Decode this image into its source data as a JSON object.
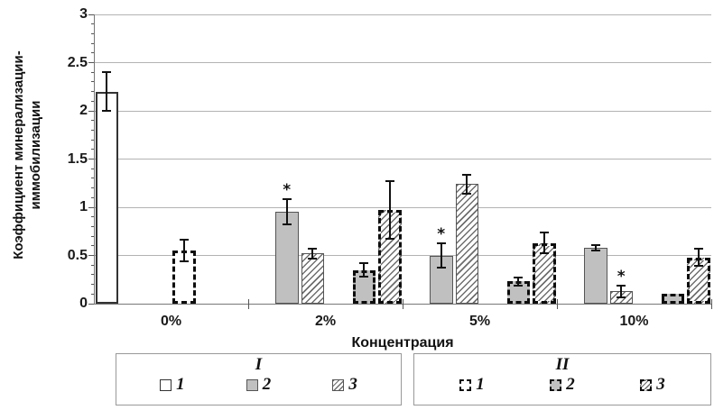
{
  "chart_data": {
    "type": "bar",
    "title": "",
    "xlabel": "Концентрация",
    "ylabel": "Коэффициент минерализации-иммобилизации",
    "ylabel_line1": "Коэффициент минерализации-",
    "ylabel_line2": "иммобилизации",
    "categories": [
      "0%",
      "2%",
      "5%",
      "10%"
    ],
    "ylim": [
      0,
      3
    ],
    "yticks": [
      {
        "v": 0,
        "label": "0"
      },
      {
        "v": 0.5,
        "label": "0.5"
      },
      {
        "v": 1,
        "label": "1"
      },
      {
        "v": 1.5,
        "label": "1.5"
      },
      {
        "v": 2,
        "label": "2"
      },
      {
        "v": 2.5,
        "label": "2.5"
      },
      {
        "v": 3,
        "label": "3"
      }
    ],
    "minor_tick_step": 0.1,
    "grid": "horizontal-major",
    "significance_marker": "*",
    "series": [
      {
        "group": "I",
        "name": "1",
        "style": "white-solid",
        "values": [
          2.2,
          0,
          0,
          0
        ],
        "errors": [
          0.2,
          0,
          0,
          0
        ],
        "sig": [
          false,
          false,
          false,
          false
        ]
      },
      {
        "group": "I",
        "name": "2",
        "style": "gray-solid",
        "values": [
          0,
          0.95,
          0.5,
          0.58
        ],
        "errors": [
          0,
          0.13,
          0.13,
          0.03
        ],
        "sig": [
          false,
          true,
          true,
          false
        ]
      },
      {
        "group": "I",
        "name": "3",
        "style": "hatch-solid",
        "values": [
          0,
          0.52,
          1.24,
          0.13
        ],
        "errors": [
          0,
          0.05,
          0.1,
          0.06
        ],
        "sig": [
          false,
          false,
          false,
          true
        ]
      },
      {
        "group": "II",
        "name": "1",
        "style": "white-dashed",
        "values": [
          0.55,
          0,
          0,
          0
        ],
        "errors": [
          0.11,
          0,
          0,
          0
        ],
        "sig": [
          false,
          false,
          false,
          false
        ]
      },
      {
        "group": "II",
        "name": "2",
        "style": "gray-dashed",
        "values": [
          0,
          0.35,
          0.23,
          0.1
        ],
        "errors": [
          0,
          0.07,
          0.04,
          0
        ],
        "sig": [
          false,
          false,
          false,
          false
        ]
      },
      {
        "group": "II",
        "name": "3",
        "style": "hatch-dashed",
        "values": [
          0,
          0.97,
          0.63,
          0.48
        ],
        "errors": [
          0,
          0.3,
          0.11,
          0.09
        ],
        "sig": [
          false,
          false,
          false,
          false
        ]
      }
    ],
    "legend": [
      {
        "title": "I",
        "items": [
          {
            "label": "1",
            "style": "white-solid"
          },
          {
            "label": "2",
            "style": "gray-solid"
          },
          {
            "label": "3",
            "style": "hatch-solid"
          }
        ]
      },
      {
        "title": "II",
        "items": [
          {
            "label": "1",
            "style": "white-dashed"
          },
          {
            "label": "2",
            "style": "gray-dashed"
          },
          {
            "label": "3",
            "style": "hatch-dashed"
          }
        ]
      }
    ],
    "legend_position": "bottom",
    "colors": {
      "bar_gray": "#c0c0c0",
      "bar_white": "#ffffff",
      "hatch_line": "#6e6e6e",
      "grid": "#b3b3b3",
      "axis": "#777777",
      "error_bar": "#111111",
      "text": "#111111"
    }
  }
}
